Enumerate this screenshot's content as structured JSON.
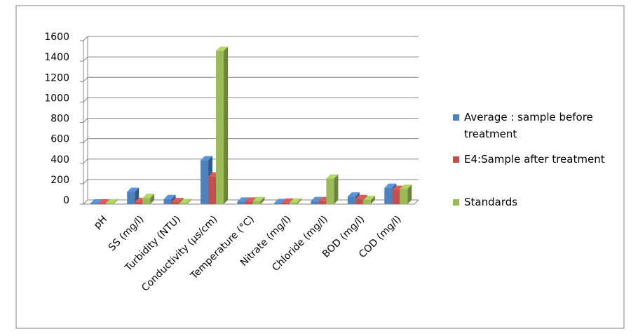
{
  "chart_data": {
    "type": "bar",
    "categories": [
      "pH",
      "SS (mg/l)",
      "Turbidity (NTU)",
      "Conductivity (µs/cm)",
      "Temperature (°C)",
      "Nitrate (mg/l)",
      "Chloride (mg/l)",
      "BOD (mg/l)",
      "COD (mg/l)"
    ],
    "series": [
      {
        "name": "Average : sample before treatment",
        "color": "#4f81bd",
        "values": [
          7,
          120,
          50,
          430,
          25,
          10,
          30,
          75,
          160
        ]
      },
      {
        "name": "E4:Sample after treatment",
        "color": "#c0504d",
        "values": [
          7,
          20,
          20,
          270,
          25,
          15,
          30,
          50,
          140
        ]
      },
      {
        "name": "Standards",
        "color": "#9bbb59",
        "values": [
          8,
          60,
          10,
          1500,
          30,
          15,
          250,
          40,
          150
        ]
      }
    ],
    "ylim": [
      0,
      1600
    ],
    "yticks": [
      0,
      200,
      400,
      600,
      800,
      1000,
      1200,
      1400,
      1600
    ],
    "grid": true,
    "legend": "right"
  }
}
